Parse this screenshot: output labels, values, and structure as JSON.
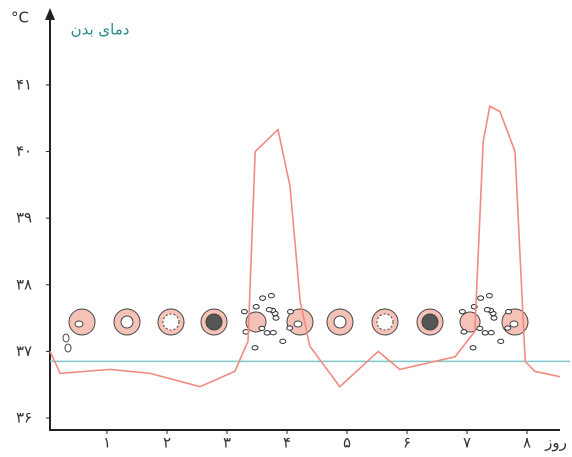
{
  "chart_data": {
    "type": "line",
    "y_label": "دمای بدن",
    "y_unit": "°C",
    "x_label": "روز",
    "xlim": [
      0,
      8.6
    ],
    "xticks": [
      {
        "value": 1,
        "label": "۱"
      },
      {
        "value": 2,
        "label": "۲"
      },
      {
        "value": 3,
        "label": "۳"
      },
      {
        "value": 4,
        "label": "۴"
      },
      {
        "value": 5,
        "label": "۵"
      },
      {
        "value": 6,
        "label": "۶"
      },
      {
        "value": 7,
        "label": "۷"
      },
      {
        "value": 8,
        "label": "۸"
      }
    ],
    "ylim": [
      35.82,
      42.05
    ],
    "yticks": [
      {
        "value": 36,
        "label": "۳۶"
      },
      {
        "value": 37,
        "label": "۳۷"
      },
      {
        "value": 38,
        "label": "۳۸"
      },
      {
        "value": 39,
        "label": "۳۹"
      },
      {
        "value": 40,
        "label": "۴۰"
      },
      {
        "value": 41,
        "label": "۴۱"
      }
    ],
    "reference_line": {
      "value": 36.85,
      "color": "#7fc6c9"
    },
    "x": [
      0.05,
      0.22,
      1.05,
      1.72,
      2.55,
      3.13,
      3.35,
      3.47,
      3.85,
      4.05,
      4.22,
      4.38,
      4.88,
      5.52,
      5.72,
      5.88,
      6.8,
      7.13,
      7.27,
      7.38,
      7.55,
      7.8,
      7.97,
      8.13,
      8.55
    ],
    "series": [
      {
        "color": "#f08a80",
        "values": [
          37.0,
          36.67,
          36.73,
          36.67,
          36.47,
          36.7,
          37.15,
          40.0,
          40.33,
          39.48,
          37.75,
          37.08,
          36.47,
          37.0,
          36.85,
          36.73,
          36.92,
          37.3,
          40.15,
          40.68,
          40.6,
          40.0,
          36.85,
          36.7,
          36.62
        ]
      }
    ]
  }
}
